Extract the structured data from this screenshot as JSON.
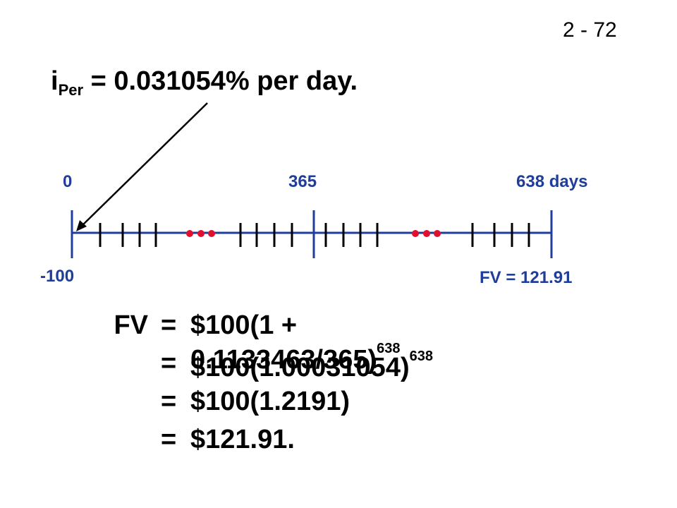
{
  "slide_number": "2 - 72",
  "rate": {
    "prefix": "i",
    "subscript": "Per",
    "text": " = 0.031054% per day."
  },
  "timeline": {
    "labels": {
      "start": "0",
      "middle": "365",
      "end": "638 days",
      "present_value": "-100",
      "future_value": "FV = 121.91"
    },
    "colors": {
      "line": "#1f3d99",
      "dots": "#e0102f",
      "arrow": "#000000"
    }
  },
  "equation": {
    "lhs": "FV",
    "sign": "=",
    "lines": [
      {
        "base": "$100(1 + 0.1133463/365)",
        "exponent": "638"
      },
      {
        "base": "$100(1.00031054)",
        "exponent": "638"
      },
      {
        "base": "$100(1.2191)",
        "exponent": ""
      },
      {
        "base": "$121.91.",
        "exponent": ""
      }
    ]
  }
}
